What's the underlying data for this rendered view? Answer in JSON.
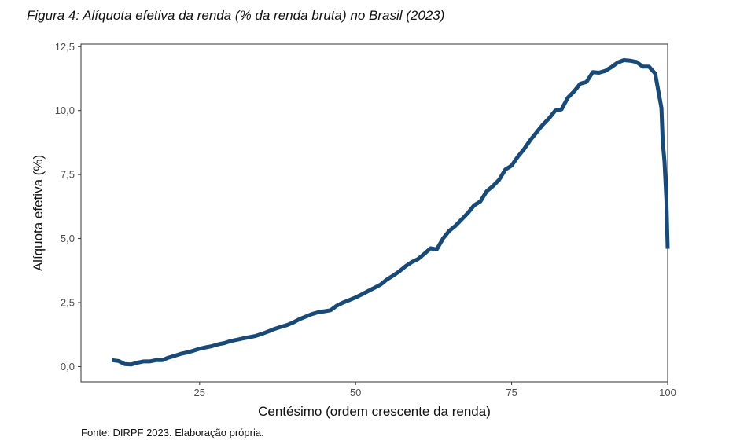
{
  "title": "Figura 4: Alíquota efetiva da renda (% da renda bruta) no Brasil (2023)",
  "source": "Fonte: DIRPF 2023. Elaboração própria.",
  "chart_data": {
    "type": "line",
    "title": "Figura 4: Alíquota efetiva da renda (% da renda bruta) no Brasil (2023)",
    "xlabel": "Centésimo (ordem crescente da renda)",
    "ylabel": "Alíquota efetiva (%)",
    "xlim": [
      6,
      100
    ],
    "ylim": [
      -0.6,
      12.6
    ],
    "xticks": [
      25,
      50,
      75,
      100
    ],
    "xtick_labels": [
      "25",
      "50",
      "75",
      "100"
    ],
    "yticks": [
      0,
      2.5,
      5,
      7.5,
      10,
      12.5
    ],
    "ytick_labels": [
      "0,0",
      "2,5",
      "5,0",
      "7,5",
      "10,0",
      "12,5"
    ],
    "grid": false,
    "line_color": "#154A7A",
    "x": [
      11,
      12,
      13,
      14,
      15,
      16,
      17,
      18,
      19,
      20,
      21,
      22,
      23,
      24,
      25,
      26,
      27,
      28,
      29,
      30,
      31,
      32,
      33,
      34,
      35,
      36,
      37,
      38,
      39,
      40,
      41,
      42,
      43,
      44,
      45,
      46,
      47,
      48,
      49,
      50,
      51,
      52,
      53,
      54,
      55,
      56,
      57,
      58,
      59,
      60,
      61,
      62,
      63,
      64,
      65,
      66,
      67,
      68,
      69,
      70,
      71,
      72,
      73,
      74,
      75,
      76,
      77,
      78,
      79,
      80,
      81,
      82,
      83,
      84,
      85,
      86,
      87,
      88,
      89,
      90,
      91,
      92,
      93,
      94,
      95,
      96,
      97,
      98,
      99,
      99.2,
      99.5,
      99.8,
      100
    ],
    "y": [
      0.25,
      0.22,
      0.1,
      0.08,
      0.15,
      0.2,
      0.2,
      0.25,
      0.25,
      0.35,
      0.42,
      0.5,
      0.55,
      0.62,
      0.7,
      0.75,
      0.8,
      0.87,
      0.92,
      1.0,
      1.05,
      1.1,
      1.15,
      1.2,
      1.28,
      1.37,
      1.47,
      1.55,
      1.62,
      1.72,
      1.85,
      1.95,
      2.05,
      2.12,
      2.16,
      2.2,
      2.38,
      2.5,
      2.6,
      2.7,
      2.82,
      2.95,
      3.07,
      3.2,
      3.4,
      3.55,
      3.72,
      3.92,
      4.08,
      4.2,
      4.4,
      4.62,
      4.58,
      5.0,
      5.3,
      5.5,
      5.75,
      6.0,
      6.3,
      6.45,
      6.85,
      7.05,
      7.3,
      7.7,
      7.85,
      8.2,
      8.5,
      8.85,
      9.15,
      9.45,
      9.7,
      10.0,
      10.05,
      10.5,
      10.75,
      11.05,
      11.12,
      11.5,
      11.48,
      11.55,
      11.7,
      11.88,
      11.97,
      11.95,
      11.9,
      11.72,
      11.72,
      11.45,
      10.1,
      8.8,
      8.0,
      6.5,
      4.6
    ]
  }
}
